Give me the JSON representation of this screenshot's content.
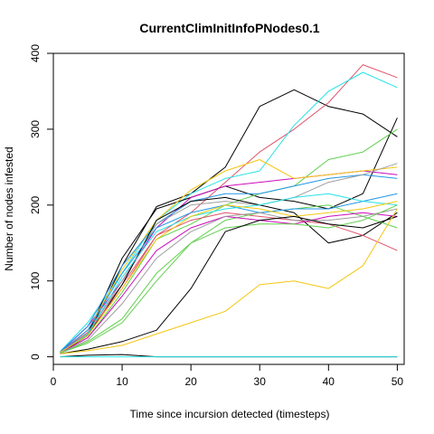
{
  "chart_data": {
    "type": "line",
    "title": "CurrentClimInitInfoPNodes0.1",
    "xlabel": "Time since incursion detected (timesteps)",
    "ylabel": "Number of nodes infested",
    "xlim": [
      0,
      51
    ],
    "ylim": [
      -10,
      400
    ],
    "x_ticks": [
      0,
      10,
      20,
      30,
      40,
      50
    ],
    "y_ticks": [
      0,
      100,
      200,
      300,
      400
    ],
    "grid": false,
    "legend": "none",
    "x": [
      1,
      5,
      10,
      15,
      20,
      25,
      30,
      35,
      40,
      45,
      50
    ],
    "series": [
      {
        "color": "#000000",
        "values": [
          5,
          28,
          120,
          198,
          215,
          250,
          330,
          352,
          330,
          320,
          290
        ]
      },
      {
        "color": "#DF536B",
        "values": [
          6,
          35,
          95,
          160,
          190,
          230,
          270,
          300,
          335,
          385,
          368
        ]
      },
      {
        "color": "#28E2E5",
        "values": [
          7,
          45,
          110,
          180,
          215,
          235,
          245,
          305,
          350,
          375,
          355
        ]
      },
      {
        "color": "#000000",
        "values": [
          5,
          30,
          130,
          195,
          210,
          225,
          210,
          205,
          195,
          215,
          315
        ]
      },
      {
        "color": "#61D04F",
        "values": [
          5,
          25,
          85,
          155,
          175,
          200,
          215,
          225,
          260,
          270,
          300
        ]
      },
      {
        "color": "#CD0BBC",
        "values": [
          6,
          40,
          100,
          170,
          210,
          225,
          230,
          235,
          240,
          245,
          240
        ]
      },
      {
        "color": "#F5C710",
        "values": [
          5,
          35,
          115,
          180,
          220,
          245,
          260,
          235,
          240,
          245,
          250
        ]
      },
      {
        "color": "#2297E6",
        "values": [
          7,
          40,
          120,
          175,
          205,
          215,
          215,
          225,
          235,
          240,
          235
        ]
      },
      {
        "color": "#9E9E9E",
        "values": [
          6,
          30,
          100,
          175,
          200,
          205,
          200,
          210,
          230,
          240,
          255
        ]
      },
      {
        "color": "#000000",
        "values": [
          5,
          28,
          95,
          180,
          205,
          210,
          200,
          190,
          150,
          160,
          190
        ]
      },
      {
        "color": "#DF536B",
        "values": [
          6,
          32,
          90,
          160,
          180,
          190,
          185,
          180,
          175,
          160,
          140
        ]
      },
      {
        "color": "#61D04F",
        "values": [
          5,
          20,
          50,
          110,
          150,
          180,
          190,
          195,
          200,
          185,
          170
        ]
      },
      {
        "color": "#2297E6",
        "values": [
          6,
          35,
          110,
          170,
          190,
          200,
          190,
          195,
          195,
          205,
          215
        ]
      },
      {
        "color": "#28E2E5",
        "values": [
          5,
          30,
          105,
          165,
          185,
          195,
          200,
          210,
          215,
          205,
          200
        ]
      },
      {
        "color": "#CD0BBC",
        "values": [
          5,
          25,
          80,
          140,
          170,
          185,
          180,
          175,
          185,
          190,
          185
        ]
      },
      {
        "color": "#F5C710",
        "values": [
          6,
          28,
          90,
          155,
          185,
          200,
          195,
          185,
          190,
          195,
          205
        ]
      },
      {
        "color": "#9E9E9E",
        "values": [
          5,
          22,
          70,
          130,
          165,
          185,
          190,
          180,
          180,
          185,
          195
        ]
      },
      {
        "color": "#61D04F",
        "values": [
          5,
          18,
          45,
          100,
          150,
          170,
          175,
          175,
          170,
          180,
          200
        ]
      },
      {
        "color": "#000000",
        "values": [
          4,
          10,
          20,
          35,
          90,
          165,
          180,
          185,
          175,
          170,
          185
        ]
      },
      {
        "color": "#F5C710",
        "values": [
          4,
          8,
          15,
          30,
          45,
          60,
          95,
          100,
          90,
          120,
          195
        ]
      },
      {
        "color": "#000000",
        "values": [
          0,
          2,
          3,
          0,
          0,
          0,
          0,
          0,
          0,
          0,
          0
        ]
      },
      {
        "color": "#28E2E5",
        "values": [
          0,
          0,
          0,
          0,
          0,
          0,
          0,
          0,
          0,
          0,
          0
        ]
      }
    ]
  }
}
